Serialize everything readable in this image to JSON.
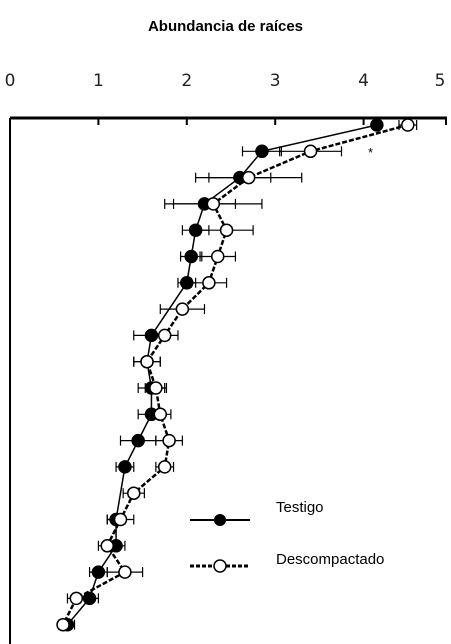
{
  "chart_data": {
    "type": "line",
    "title": "Abundancia de raíces",
    "xlabel": "",
    "ylabel": "",
    "xlim": [
      0,
      5
    ],
    "x_ticks": [
      "0",
      "1",
      "2",
      "3",
      "4",
      "5"
    ],
    "y_axis_inverted": true,
    "grid": false,
    "legend_position": "bottom-right",
    "annotation": "*",
    "series": [
      {
        "name": "Testigo",
        "marker": "filled-circle",
        "line_style": "solid",
        "color": "#000000",
        "points": [
          {
            "x": 4.15,
            "y": 1,
            "err": 0
          },
          {
            "x": 2.85,
            "y": 2,
            "err": 0.22
          },
          {
            "x": 2.6,
            "y": 3,
            "err": 0.35
          },
          {
            "x": 2.2,
            "y": 4,
            "err": 0.35
          },
          {
            "x": 2.1,
            "y": 5,
            "err": 0.15
          },
          {
            "x": 2.05,
            "y": 6,
            "err": 0.12
          },
          {
            "x": 2.0,
            "y": 7,
            "err": 0.1
          },
          {
            "x": 1.6,
            "y": 9,
            "err": 0.2
          },
          {
            "x": 1.55,
            "y": 10,
            "err": 0.15
          },
          {
            "x": 1.6,
            "y": 11,
            "err": 0.15
          },
          {
            "x": 1.6,
            "y": 12,
            "err": 0.15
          },
          {
            "x": 1.45,
            "y": 13,
            "err": 0.2
          },
          {
            "x": 1.3,
            "y": 14,
            "err": 0.1
          },
          {
            "x": 1.2,
            "y": 16,
            "err": 0.1
          },
          {
            "x": 1.2,
            "y": 17,
            "err": 0.1
          },
          {
            "x": 1.0,
            "y": 18,
            "err": 0.1
          },
          {
            "x": 0.9,
            "y": 19,
            "err": 0.1
          },
          {
            "x": 0.65,
            "y": 20,
            "err": 0.08
          }
        ]
      },
      {
        "name": "Descompactado",
        "marker": "open-circle",
        "line_style": "dashed",
        "color": "#000000",
        "points": [
          {
            "x": 4.5,
            "y": 1,
            "err": 0.1
          },
          {
            "x": 3.4,
            "y": 2,
            "err": 0.35
          },
          {
            "x": 2.7,
            "y": 3,
            "err": 0.6
          },
          {
            "x": 2.3,
            "y": 4,
            "err": 0.55
          },
          {
            "x": 2.45,
            "y": 5,
            "err": 0.3
          },
          {
            "x": 2.35,
            "y": 6,
            "err": 0.2
          },
          {
            "x": 2.25,
            "y": 7,
            "err": 0.2
          },
          {
            "x": 1.95,
            "y": 8,
            "err": 0.25
          },
          {
            "x": 1.75,
            "y": 9,
            "err": 0.15
          },
          {
            "x": 1.55,
            "y": 10,
            "err": 0.15
          },
          {
            "x": 1.65,
            "y": 11,
            "err": 0.12
          },
          {
            "x": 1.7,
            "y": 12,
            "err": 0.12
          },
          {
            "x": 1.8,
            "y": 13,
            "err": 0.15
          },
          {
            "x": 1.75,
            "y": 14,
            "err": 0.1
          },
          {
            "x": 1.4,
            "y": 15,
            "err": 0.12
          },
          {
            "x": 1.25,
            "y": 16,
            "err": 0.15
          },
          {
            "x": 1.1,
            "y": 17,
            "err": 0.1
          },
          {
            "x": 1.3,
            "y": 18,
            "err": 0.2
          },
          {
            "x": 0.75,
            "y": 19,
            "err": 0.1
          },
          {
            "x": 0.6,
            "y": 20,
            "err": 0.05
          }
        ]
      }
    ]
  }
}
